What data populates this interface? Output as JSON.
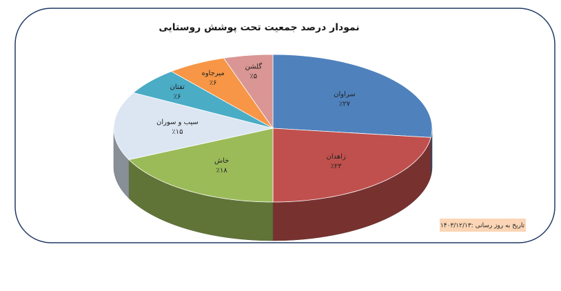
{
  "chart_data": {
    "type": "pie3d",
    "title": "نمودار درصد جمعیت تحت پوشش روستایی",
    "note": "تاریخ به روز رسانی :۱۴۰۳/۱۲/۱۳",
    "categories": [
      "سراوان",
      "زاهدان",
      "خاش",
      "سیب و سوران",
      "تفتان",
      "میرجاوه",
      "گلشن"
    ],
    "values": [
      27,
      23,
      18,
      15,
      6,
      6,
      5
    ],
    "value_labels": [
      "٪۲۷",
      "٪۲۳",
      "٪۱۸",
      "٪۱۵",
      "٪۶",
      "٪۶",
      "٪۵"
    ],
    "colors": [
      "#4f81bd",
      "#c0504d",
      "#9bbb59",
      "#dce6f2",
      "#4bacc6",
      "#f79646",
      "#d99694"
    ]
  }
}
